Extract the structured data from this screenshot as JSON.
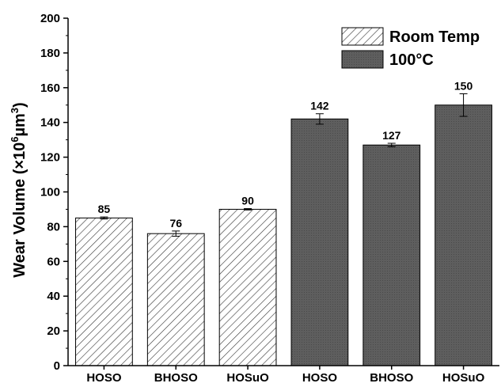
{
  "chart_data": {
    "type": "bar",
    "categories": [
      "HOSO",
      "BHOSO",
      "HOSuO",
      "HOSO",
      "BHOSO",
      "HOSuO"
    ],
    "series": [
      {
        "name": "Room Temp",
        "values": [
          85,
          76,
          90,
          null,
          null,
          null
        ],
        "errors": [
          0.6,
          1.5,
          0.4,
          null,
          null,
          null
        ],
        "fill": "hatch",
        "color": "#ffffff"
      },
      {
        "name": "100°C",
        "values": [
          null,
          null,
          null,
          142,
          127,
          150
        ],
        "errors": [
          null,
          null,
          null,
          3,
          1,
          6.5
        ],
        "fill": "solid",
        "color": "#5a5a5a"
      }
    ],
    "data_labels": [
      "85",
      "76",
      "90",
      "142",
      "127",
      "150"
    ],
    "ylabel": {
      "main": "Wear Volume (×10",
      "sup1": "6",
      "mid": "µm",
      "sup2": "3",
      "end": ")"
    },
    "xlabel": "",
    "ylim": [
      0,
      200
    ],
    "yticks": [
      "0",
      "20",
      "40",
      "60",
      "80",
      "100",
      "120",
      "140",
      "160",
      "180",
      "200"
    ],
    "legend_placement": "top-right",
    "grid": false
  }
}
